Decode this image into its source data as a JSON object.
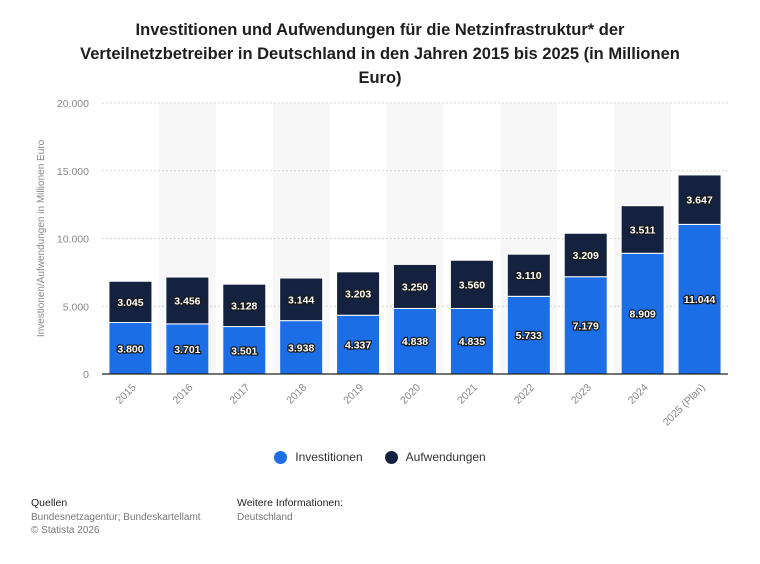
{
  "title": "Investitionen und Aufwendungen für die Netzinfrastruktur* der Verteilnetzbetreiber in Deutschland in den Jahren 2015 bis 2025 (in Millionen Euro)",
  "chart_data": {
    "type": "bar",
    "stacked": true,
    "categories": [
      "2015",
      "2016",
      "2017",
      "2018",
      "2019",
      "2020",
      "2021",
      "2022",
      "2023",
      "2024",
      "2025 (Plan)"
    ],
    "series": [
      {
        "name": "Investitionen",
        "color": "#1b6ee6",
        "values": [
          3800,
          3701,
          3501,
          3938,
          4337,
          4838,
          4835,
          5733,
          7179,
          8909,
          11044
        ],
        "labels": [
          "3.800",
          "3.701",
          "3.501",
          "3.938",
          "4.337",
          "4.838",
          "4.835",
          "5.733",
          "7.179",
          "8.909",
          "11.044"
        ]
      },
      {
        "name": "Aufwendungen",
        "color": "#14223f",
        "values": [
          3045,
          3456,
          3128,
          3144,
          3203,
          3250,
          3560,
          3110,
          3209,
          3511,
          3647
        ],
        "labels": [
          "3.045",
          "3.456",
          "3.128",
          "3.144",
          "3.203",
          "3.250",
          "3.560",
          "3.110",
          "3.209",
          "3.511",
          "3.647"
        ]
      }
    ],
    "ylabel": "Investionen/Aufwendungen in Millionen Euro",
    "ylim": [
      0,
      20000
    ],
    "yticks": [
      0,
      5000,
      10000,
      15000,
      20000
    ],
    "ytick_labels": [
      "0",
      "5.000",
      "10.000",
      "15.000",
      "20.000"
    ],
    "grid": true,
    "legend_position": "bottom"
  },
  "footer": {
    "sources_heading": "Quellen",
    "sources_text": "Bundesnetzagentur; Bundeskartellamt",
    "copyright": "© Statista 2026",
    "info_heading": "Weitere Informationen:",
    "info_text": "Deutschland"
  }
}
